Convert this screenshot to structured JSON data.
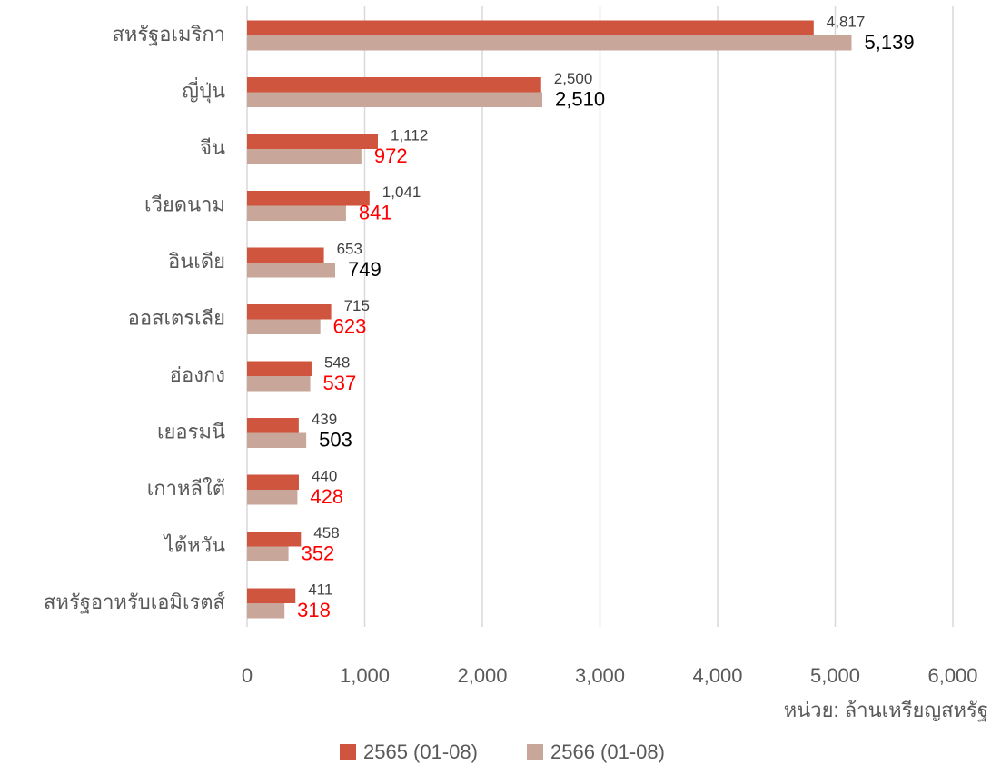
{
  "chart_data": {
    "type": "hbar",
    "categories": [
      "สหรัฐอเมริกา",
      "ญี่ปุ่น",
      "จีน",
      "เวียดนาม",
      "อินเดีย",
      "ออสเตรเลีย",
      "ฮ่องกง",
      "เยอรมนี",
      "เกาหลีใต้",
      "ไต้หวัน",
      "สหรัฐอาหรับเอมิเรตส์"
    ],
    "series": [
      {
        "name": "2565 (01-08)",
        "color": "#d0553f",
        "values": [
          4817,
          2500,
          1112,
          1041,
          653,
          715,
          548,
          439,
          440,
          458,
          411
        ],
        "value_labels": [
          "4,817",
          "2,500",
          "1,112",
          "1,041",
          "653",
          "715",
          "548",
          "439",
          "440",
          "458",
          "411"
        ]
      },
      {
        "name": "2566 (01-08)",
        "color": "#c9a69a",
        "values": [
          5139,
          2510,
          972,
          841,
          749,
          623,
          537,
          503,
          428,
          352,
          318
        ],
        "value_labels": [
          "5,139",
          "2,510",
          "972",
          "841",
          "749",
          "623",
          "537",
          "503",
          "428",
          "352",
          "318"
        ],
        "label_color_up": "#000000",
        "label_color_down": "#ff0000"
      }
    ],
    "xlim": [
      0,
      6000
    ],
    "xticks": [
      0,
      {
        "value": 1000,
        "label": "1,000"
      },
      {
        "value": 2000,
        "label": "2,000"
      },
      {
        "value": 3000,
        "label": "3,000"
      },
      {
        "value": 4000,
        "label": "4,000"
      },
      {
        "value": 5000,
        "label": "5,000"
      },
      {
        "value": 6000,
        "label": "6,000"
      }
    ],
    "x_label": "หน่วย: ล้านเหรียญสหรัฐ",
    "grid": true,
    "legend": "bottom"
  }
}
